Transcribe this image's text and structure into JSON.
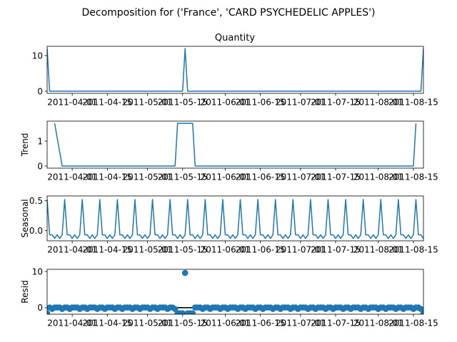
{
  "chart_data": {
    "type": "line",
    "title": "Decomposition for ('France', 'CARD PSYCHEDELIC APPLES')",
    "x_start": "2011-03-22",
    "x_end": "2011-08-19",
    "xticks": [
      "2011-04-01",
      "2011-04-15",
      "2011-05-01",
      "2011-05-15",
      "2011-06-01",
      "2011-06-15",
      "2011-07-01",
      "2011-07-15",
      "2011-08-01",
      "2011-08-15"
    ],
    "xtick_labels": [
      "2011-04-01",
      "2011-04-15",
      "2011-05-01",
      "2011-05-15",
      "2011-06-01",
      "2011-06-15",
      "2011-07-01",
      "2011-07-15",
      "2011-08-01",
      "2011-08-15"
    ],
    "panels": [
      {
        "name": "observed",
        "title": "Quantity",
        "ylabel": "",
        "kind": "line",
        "ylim": [
          -0.6,
          12.6
        ],
        "yticks": [
          0,
          10
        ],
        "events": [
          {
            "date": "2011-03-22",
            "value": 12
          },
          {
            "date": "2011-05-16",
            "value": 12
          },
          {
            "date": "2011-08-19",
            "value": 12
          }
        ],
        "baseline": 0
      },
      {
        "name": "trend",
        "title": "",
        "ylabel": "Trend",
        "kind": "line",
        "ylim": [
          -0.085,
          1.8
        ],
        "yticks": [
          0,
          1
        ],
        "points": [
          {
            "date": "2011-03-25",
            "value": 1.71
          },
          {
            "date": "2011-03-28",
            "value": 0
          },
          {
            "date": "2011-05-12",
            "value": 0
          },
          {
            "date": "2011-05-13",
            "value": 1.71
          },
          {
            "date": "2011-05-19",
            "value": 1.71
          },
          {
            "date": "2011-05-20",
            "value": 0
          },
          {
            "date": "2011-08-15",
            "value": 0
          },
          {
            "date": "2011-08-16",
            "value": 1.71
          }
        ]
      },
      {
        "name": "seasonal",
        "title": "",
        "ylabel": "Seasonal",
        "kind": "line",
        "ylim": [
          -0.17,
          0.58
        ],
        "yticks": [
          0.0,
          0.5
        ],
        "period_days": 7,
        "pattern": [
          0.52,
          -0.07,
          -0.07,
          -0.13,
          -0.07,
          -0.13,
          -0.07
        ],
        "start": "2011-03-22"
      },
      {
        "name": "resid",
        "title": "",
        "ylabel": "Resid",
        "kind": "scatter",
        "ylim": [
          -1.8,
          10.6
        ],
        "yticks": [
          0,
          10
        ],
        "zero_line": true,
        "outlier": {
          "date": "2011-05-16",
          "value": 9.6
        },
        "negative_run": {
          "from": "2011-05-13",
          "to": "2011-05-19",
          "value": -1.55
        },
        "start_value": -1.55,
        "end_value": -1.55
      }
    ]
  }
}
